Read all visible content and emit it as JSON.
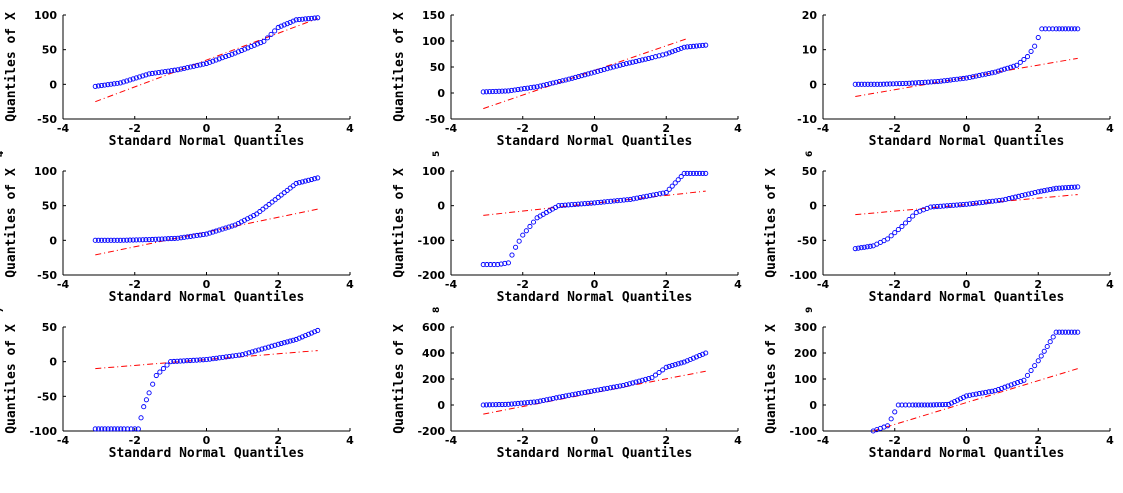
{
  "style": {
    "marker_color": "#0000ff",
    "ref_line_color": "#ff0000"
  },
  "chart_data": [
    {
      "type": "scatter",
      "title": "",
      "xlabel": "Standard Normal Quantiles",
      "ylabel": "Quantiles of X",
      "xlim": [
        -4,
        4
      ],
      "ylim": [
        -50,
        100
      ],
      "xticks": [
        -4,
        -2,
        0,
        2,
        4
      ],
      "yticks": [
        -50,
        0,
        50,
        100
      ],
      "markers": {
        "x": [
          -3.1,
          -2.4,
          -1.6,
          -0.8,
          0.0,
          0.8,
          1.6,
          2.0,
          2.5,
          3.1
        ],
        "y": [
          -3,
          2,
          15,
          21,
          30,
          45,
          62,
          82,
          93,
          96
        ]
      },
      "ref_line": {
        "x": [
          -3.1,
          3.1
        ],
        "y": [
          -25,
          95
        ]
      }
    },
    {
      "type": "scatter",
      "title": "",
      "xlabel": "Standard Normal Quantiles",
      "ylabel": "Quantiles of X",
      "xlim": [
        -4,
        4
      ],
      "ylim": [
        -50,
        150
      ],
      "xticks": [
        -4,
        -2,
        0,
        2,
        4
      ],
      "yticks": [
        -50,
        0,
        50,
        100,
        150
      ],
      "markers": {
        "x": [
          -3.1,
          -2.4,
          -1.6,
          -0.8,
          0.0,
          0.8,
          1.6,
          2.0,
          2.5,
          3.1
        ],
        "y": [
          2,
          4,
          12,
          25,
          40,
          55,
          68,
          75,
          88,
          92
        ]
      },
      "ref_line": {
        "x": [
          -3.1,
          2.6
        ],
        "y": [
          -30,
          105
        ]
      }
    },
    {
      "type": "scatter",
      "title": "",
      "xlabel": "Standard Normal Quantiles",
      "ylabel": "",
      "xlim": [
        -4,
        4
      ],
      "ylim": [
        -10,
        20
      ],
      "xticks": [
        -4,
        -2,
        0,
        2,
        4
      ],
      "yticks": [
        -10,
        0,
        10,
        20
      ],
      "markers": {
        "x": [
          -3.1,
          -2.4,
          -1.6,
          -0.8,
          0.0,
          0.8,
          1.4,
          1.7,
          1.9,
          2.1,
          2.5,
          3.1
        ],
        "y": [
          0,
          0,
          0.3,
          0.8,
          1.8,
          3.5,
          5.5,
          8,
          11,
          16,
          16,
          16
        ]
      },
      "ref_line": {
        "x": [
          -3.1,
          3.1
        ],
        "y": [
          -3.5,
          7.5
        ]
      }
    },
    {
      "type": "scatter",
      "title": "",
      "xlabel": "Standard Normal Quantiles",
      "ylabel": "Quantiles of X",
      "xlim": [
        -4,
        4
      ],
      "ylim": [
        -50,
        100
      ],
      "xticks": [
        -4,
        -2,
        0,
        2,
        4
      ],
      "yticks": [
        -50,
        0,
        50,
        100
      ],
      "markers": {
        "x": [
          -3.1,
          -2.4,
          -1.6,
          -0.8,
          0.0,
          0.8,
          1.4,
          2.0,
          2.5,
          3.1
        ],
        "y": [
          0,
          0,
          1,
          3,
          9,
          22,
          38,
          62,
          82,
          90
        ]
      },
      "ref_line": {
        "x": [
          -3.1,
          3.1
        ],
        "y": [
          -21,
          45
        ]
      }
    },
    {
      "type": "scatter",
      "title": "",
      "xlabel": "Standard Normal Quantiles",
      "ylabel": "Quantiles of X",
      "xlim": [
        -4,
        4
      ],
      "ylim": [
        -200,
        100
      ],
      "xticks": [
        -4,
        -2,
        0,
        2,
        4
      ],
      "yticks": [
        -200,
        -100,
        0,
        100
      ],
      "markers": {
        "x": [
          -3.1,
          -2.7,
          -2.4,
          -2.2,
          -2.0,
          -1.6,
          -1.0,
          0.0,
          1.0,
          2.0,
          2.5,
          3.1
        ],
        "y": [
          -170,
          -170,
          -165,
          -120,
          -85,
          -35,
          0,
          8,
          18,
          38,
          93,
          93
        ]
      },
      "ref_line": {
        "x": [
          -3.1,
          3.1
        ],
        "y": [
          -28,
          42
        ]
      }
    },
    {
      "type": "scatter",
      "title": "",
      "xlabel": "Standard Normal Quantiles",
      "ylabel": "Quantiles of X",
      "xlim": [
        -4,
        4
      ],
      "ylim": [
        -100,
        50
      ],
      "xticks": [
        -4,
        -2,
        0,
        2,
        4
      ],
      "yticks": [
        -100,
        -50,
        0,
        50
      ],
      "markers": {
        "x": [
          -3.1,
          -2.6,
          -2.2,
          -1.8,
          -1.4,
          -1.0,
          0.0,
          1.0,
          2.0,
          2.5,
          3.1
        ],
        "y": [
          -62,
          -58,
          -48,
          -30,
          -10,
          -2,
          2,
          8,
          20,
          25,
          27
        ]
      },
      "ref_line": {
        "x": [
          -3.1,
          3.1
        ],
        "y": [
          -13,
          16
        ]
      }
    },
    {
      "type": "scatter",
      "title": "",
      "xlabel": "Standard Normal Quantiles",
      "ylabel": "Quantiles of X",
      "xlim": [
        -4,
        4
      ],
      "ylim": [
        -100,
        50
      ],
      "xticks": [
        -4,
        -2,
        0,
        2,
        4
      ],
      "yticks": [
        -100,
        -50,
        0,
        50
      ],
      "markers": {
        "x": [
          -3.1,
          -2.3,
          -1.9,
          -1.75,
          -1.6,
          -1.4,
          -1.0,
          0.0,
          1.0,
          2.0,
          2.5,
          3.1
        ],
        "y": [
          -97,
          -97,
          -97,
          -65,
          -45,
          -20,
          0,
          3,
          10,
          25,
          32,
          45
        ]
      },
      "ref_line": {
        "x": [
          -3.1,
          3.1
        ],
        "y": [
          -10,
          16
        ]
      }
    },
    {
      "type": "scatter",
      "title": "",
      "xlabel": "Standard Normal Quantiles",
      "ylabel": "Quantiles of X",
      "xlim": [
        -4,
        4
      ],
      "ylim": [
        -200,
        600
      ],
      "xticks": [
        -4,
        -2,
        0,
        2,
        4
      ],
      "yticks": [
        -200,
        0,
        200,
        400,
        600
      ],
      "markers": {
        "x": [
          -3.1,
          -2.4,
          -1.6,
          -0.8,
          0.0,
          0.8,
          1.6,
          2.0,
          2.5,
          3.1
        ],
        "y": [
          0,
          5,
          25,
          70,
          110,
          150,
          210,
          290,
          330,
          400
        ]
      },
      "ref_line": {
        "x": [
          -3.1,
          3.1
        ],
        "y": [
          -70,
          260
        ]
      }
    },
    {
      "type": "scatter",
      "title": "",
      "xlabel": "Standard Normal Quantiles",
      "ylabel": "Quantiles of X",
      "xlim": [
        -4,
        4
      ],
      "ylim": [
        -100,
        300
      ],
      "xticks": [
        -4,
        -2,
        0,
        2,
        4
      ],
      "yticks": [
        -100,
        0,
        100,
        200,
        300
      ],
      "markers": {
        "x": [
          -2.6,
          -2.2,
          -1.9,
          -1.5,
          -1.0,
          -0.5,
          0.0,
          0.8,
          1.6,
          2.0,
          2.5,
          3.1
        ],
        "y": [
          -100,
          -80,
          0,
          0,
          0,
          2,
          35,
          55,
          95,
          170,
          280,
          280
        ]
      },
      "ref_line": {
        "x": [
          -2.6,
          3.1
        ],
        "y": [
          -100,
          140
        ]
      }
    }
  ]
}
